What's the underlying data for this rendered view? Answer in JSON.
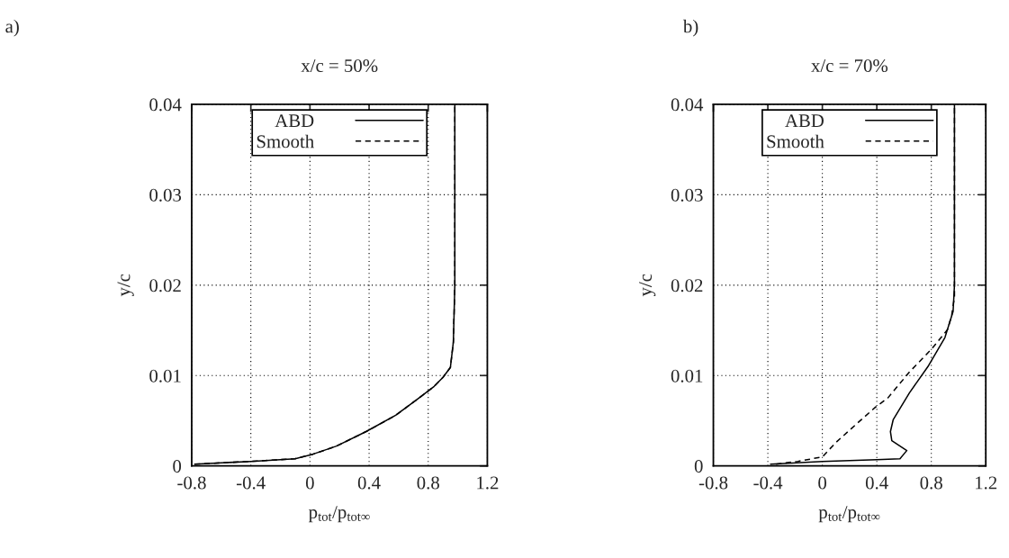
{
  "chart_data": [
    {
      "type": "line",
      "title": "x/c = 50%",
      "xlabel": "p$_{tot}$/p$_{tot∞}$",
      "ylabel": "y/c",
      "annotations": [
        "a)"
      ],
      "xlim": [
        -0.8,
        1.2
      ],
      "xticks": [
        -0.8,
        -0.4,
        0,
        0.4,
        0.8,
        1.2
      ],
      "ylim": [
        0,
        0.04
      ],
      "yticks": [
        0,
        0.01,
        0.02,
        0.03,
        0.04
      ],
      "grid": true,
      "legend": "top",
      "marker": "none",
      "series": [
        {
          "name": "ABD",
          "color": "#000000",
          "line_style": "solid",
          "x": [
            -0.78,
            -0.4,
            -0.1,
            0.02,
            0.18,
            0.38,
            0.58,
            0.72,
            0.84,
            0.9,
            0.95,
            0.97,
            0.98,
            0.98
          ],
          "values": [
            0.0002,
            0.0005,
            0.0008,
            0.0013,
            0.0022,
            0.0038,
            0.0056,
            0.0073,
            0.0088,
            0.0098,
            0.0109,
            0.0137,
            0.02,
            0.04
          ]
        },
        {
          "name": "Smooth",
          "color": "#000000",
          "line_style": "dashed",
          "x": [
            -0.78,
            -0.4,
            -0.1,
            0.02,
            0.18,
            0.38,
            0.58,
            0.72,
            0.84,
            0.9,
            0.95,
            0.97,
            0.98,
            0.98
          ],
          "values": [
            0.0002,
            0.0005,
            0.0008,
            0.0013,
            0.0022,
            0.0038,
            0.0056,
            0.0073,
            0.0088,
            0.0098,
            0.0109,
            0.0137,
            0.02,
            0.04
          ]
        }
      ]
    },
    {
      "type": "line",
      "title": "x/c = 70%",
      "xlabel": "p$_{tot}$/p$_{tot∞}$",
      "ylabel": "y/c",
      "annotations": [
        "b)"
      ],
      "xlim": [
        -0.8,
        1.2
      ],
      "xticks": [
        -0.8,
        -0.4,
        0,
        0.4,
        0.8,
        1.2
      ],
      "ylim": [
        0,
        0.04
      ],
      "yticks": [
        0,
        0.01,
        0.02,
        0.03,
        0.04
      ],
      "grid": true,
      "legend": "top",
      "marker": "none",
      "series": [
        {
          "name": "ABD",
          "color": "#000000",
          "line_style": "solid",
          "x": [
            -0.38,
            0.0,
            0.4,
            0.57,
            0.62,
            0.51,
            0.5,
            0.52,
            0.64,
            0.78,
            0.9,
            0.96,
            0.97,
            0.97
          ],
          "values": [
            0.0002,
            0.0005,
            0.0007,
            0.0008,
            0.0017,
            0.0028,
            0.0038,
            0.0051,
            0.0081,
            0.0111,
            0.0142,
            0.0171,
            0.02,
            0.04
          ]
        },
        {
          "name": "Smooth",
          "color": "#000000",
          "line_style": "dashed",
          "x": [
            -0.34,
            -0.18,
            0.0,
            0.1,
            0.24,
            0.39,
            0.48,
            0.64,
            0.8,
            0.92,
            0.95,
            0.97,
            0.97
          ],
          "values": [
            0.0002,
            0.0005,
            0.001,
            0.0026,
            0.0045,
            0.0065,
            0.0075,
            0.0104,
            0.0129,
            0.0151,
            0.0167,
            0.0187,
            0.04
          ]
        }
      ]
    }
  ]
}
